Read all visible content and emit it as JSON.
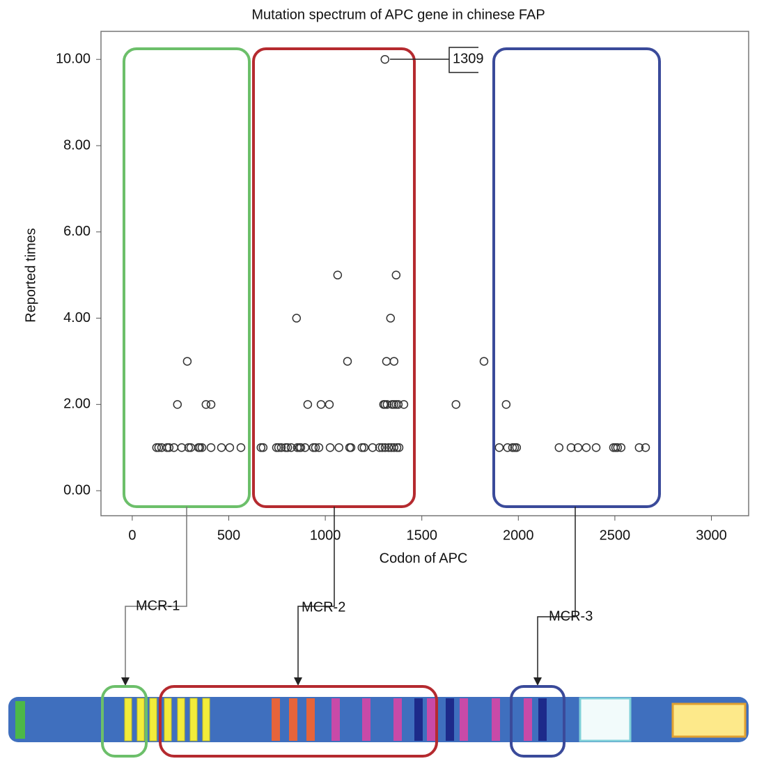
{
  "chart_data": {
    "type": "scatter",
    "title": "Mutation spectrum of APC gene in chinese FAP",
    "x_label": "Codon of APC",
    "y_label": "Reported times",
    "annotations": [
      "1309",
      "MCR-1",
      "MCR-2",
      "MCR-3"
    ],
    "xlim": [
      -162,
      3193
    ],
    "ylim": [
      -0.58,
      10.65
    ],
    "xticks": [
      0,
      500,
      1000,
      1500,
      2000,
      2500,
      3000
    ],
    "yticks": [
      {
        "value": 0,
        "label": "0.00"
      },
      {
        "value": 2,
        "label": "2.00"
      },
      {
        "value": 4,
        "label": "4.00"
      },
      {
        "value": 6,
        "label": "6.00"
      },
      {
        "value": 8,
        "label": "8.00"
      },
      {
        "value": 10,
        "label": "10.00"
      }
    ],
    "color": "#333333",
    "x": [
      1309,
      1064,
      1367,
      851,
      1338,
      285,
      1115,
      1317,
      1356,
      1822,
      234,
      382,
      408,
      909,
      978,
      1021,
      1302,
      1309,
      1320,
      1346,
      1356,
      1367,
      1378,
      1407,
      1677,
      1937,
      126,
      137,
      152,
      180,
      191,
      216,
      256,
      292,
      303,
      343,
      350,
      361,
      408,
      462,
      505,
      563,
      667,
      678,
      747,
      758,
      772,
      794,
      805,
      823,
      855,
      866,
      873,
      895,
      938,
      949,
      967,
      1025,
      1071,
      1126,
      1133,
      1190,
      1201,
      1245,
      1281,
      1295,
      1310,
      1328,
      1342,
      1356,
      1371,
      1382,
      1901,
      1944,
      1970,
      1981,
      1991,
      2211,
      2273,
      2309,
      2352,
      2403,
      2493,
      2504,
      2514,
      2532,
      2626,
      2659
    ],
    "values": [
      10,
      5,
      5,
      4,
      4,
      3,
      3,
      3,
      3,
      3,
      2,
      2,
      2,
      2,
      2,
      2,
      2,
      2,
      2,
      2,
      2,
      2,
      2,
      2,
      2,
      2,
      1,
      1,
      1,
      1,
      1,
      1,
      1,
      1,
      1,
      1,
      1,
      1,
      1,
      1,
      1,
      1,
      1,
      1,
      1,
      1,
      1,
      1,
      1,
      1,
      1,
      1,
      1,
      1,
      1,
      1,
      1,
      1,
      1,
      1,
      1,
      1,
      1,
      1,
      1,
      1,
      1,
      1,
      1,
      1,
      1,
      1,
      1,
      1,
      1,
      1,
      1,
      1,
      1,
      1,
      1,
      1,
      1,
      1,
      1,
      1,
      1,
      1
    ]
  }
}
